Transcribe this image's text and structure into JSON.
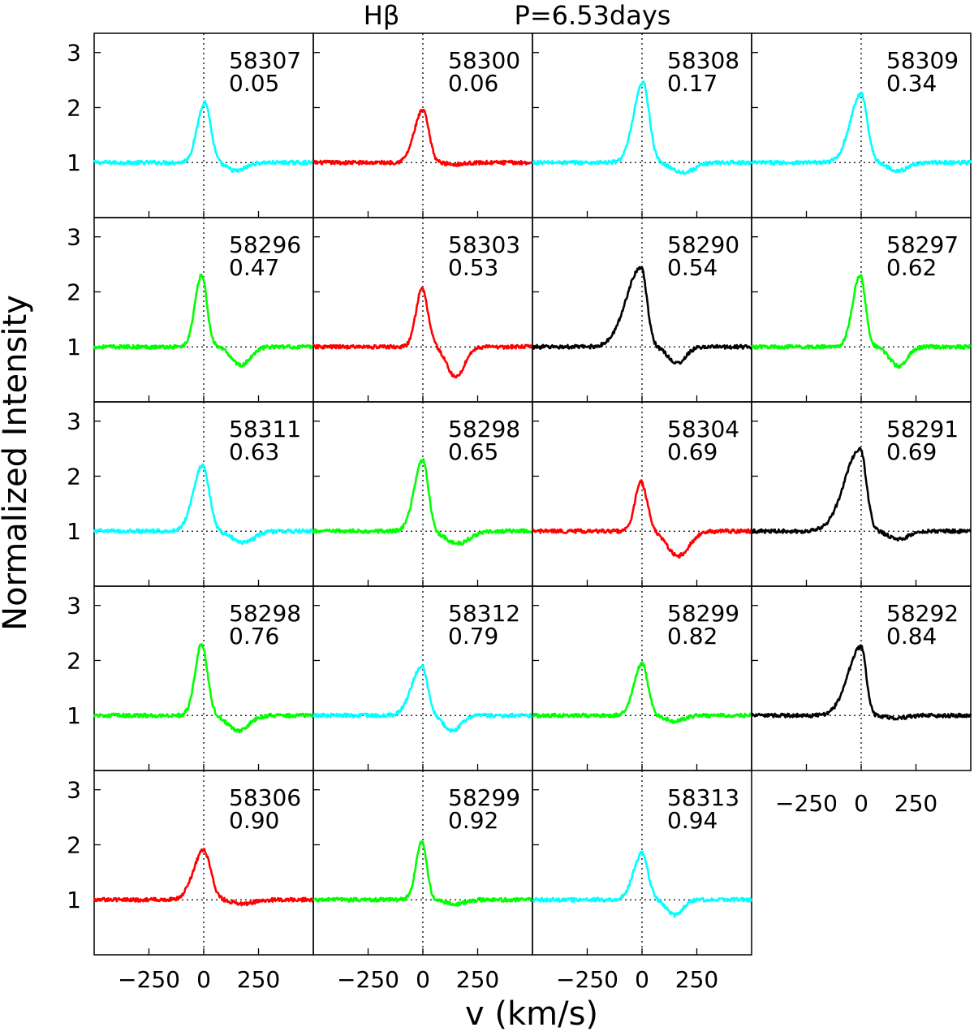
{
  "chart_data": {
    "type": "line",
    "title": "Hβ      P=6.53days",
    "title_line": "Hβ",
    "title_period": "P=6.53days",
    "xlabel": "v (km/s)",
    "ylabel": "Normalized Intensity",
    "xlim": [
      -500,
      500
    ],
    "ylim": [
      0,
      3.35
    ],
    "x_ticks": [
      -250,
      0,
      250
    ],
    "x_tick_labels": [
      "−250",
      "0",
      "250"
    ],
    "y_ticks": [
      1,
      2,
      3
    ],
    "y_tick_labels": [
      "1",
      "2",
      "3"
    ],
    "reference_lines": {
      "x": 0,
      "y": 1
    },
    "color_legend": {
      "cyan": "#00ffff",
      "red": "#ff0000",
      "green": "#00ff00",
      "black": "#000000"
    },
    "panels": [
      {
        "mjd": "58307",
        "phase": "0.05",
        "color": "cyan",
        "peak": 2.1,
        "peak_v": 5,
        "blue_width": 48,
        "red_width": 38,
        "abs_depth": 0.15,
        "abs_v": 150,
        "abs_width": 60
      },
      {
        "mjd": "58300",
        "phase": "0.06",
        "color": "red",
        "peak": 1.95,
        "peak_v": 0,
        "blue_width": 55,
        "red_width": 38,
        "abs_depth": 0.03,
        "abs_v": 150,
        "abs_width": 60
      },
      {
        "mjd": "58308",
        "phase": "0.17",
        "color": "cyan",
        "peak": 2.45,
        "peak_v": 5,
        "blue_width": 60,
        "red_width": 40,
        "abs_depth": 0.18,
        "abs_v": 190,
        "abs_width": 70
      },
      {
        "mjd": "58309",
        "phase": "0.34",
        "color": "cyan",
        "peak": 2.25,
        "peak_v": 0,
        "blue_width": 70,
        "red_width": 40,
        "abs_depth": 0.15,
        "abs_v": 170,
        "abs_width": 60
      },
      {
        "mjd": "58296",
        "phase": "0.47",
        "color": "green",
        "peak": 2.3,
        "peak_v": -10,
        "blue_width": 42,
        "red_width": 35,
        "abs_depth": 0.33,
        "abs_v": 170,
        "abs_width": 60
      },
      {
        "mjd": "58303",
        "phase": "0.53",
        "color": "red",
        "peak": 2.05,
        "peak_v": -5,
        "blue_width": 38,
        "red_width": 40,
        "abs_depth": 0.55,
        "abs_v": 150,
        "abs_width": 55
      },
      {
        "mjd": "58290",
        "phase": "0.54",
        "color": "black",
        "peak": 2.45,
        "peak_v": -5,
        "blue_width": 95,
        "red_width": 38,
        "abs_depth": 0.3,
        "abs_v": 160,
        "abs_width": 55
      },
      {
        "mjd": "58297",
        "phase": "0.62",
        "color": "green",
        "peak": 2.3,
        "peak_v": -5,
        "blue_width": 48,
        "red_width": 35,
        "abs_depth": 0.35,
        "abs_v": 170,
        "abs_width": 55
      },
      {
        "mjd": "58311",
        "phase": "0.63",
        "color": "cyan",
        "peak": 2.2,
        "peak_v": -5,
        "blue_width": 60,
        "red_width": 42,
        "abs_depth": 0.2,
        "abs_v": 180,
        "abs_width": 70
      },
      {
        "mjd": "58298",
        "phase": "0.65",
        "color": "green",
        "peak": 2.3,
        "peak_v": 0,
        "blue_width": 55,
        "red_width": 35,
        "abs_depth": 0.22,
        "abs_v": 160,
        "abs_width": 75
      },
      {
        "mjd": "58304",
        "phase": "0.69",
        "color": "red",
        "peak": 1.9,
        "peak_v": -5,
        "blue_width": 38,
        "red_width": 40,
        "abs_depth": 0.45,
        "abs_v": 165,
        "abs_width": 70
      },
      {
        "mjd": "58291",
        "phase": "0.69",
        "color": "black",
        "peak": 2.5,
        "peak_v": -5,
        "blue_width": 100,
        "red_width": 40,
        "abs_depth": 0.15,
        "abs_v": 170,
        "abs_width": 60
      },
      {
        "mjd": "58298",
        "phase": "0.76",
        "color": "green",
        "peak": 2.3,
        "peak_v": -10,
        "blue_width": 42,
        "red_width": 38,
        "abs_depth": 0.28,
        "abs_v": 160,
        "abs_width": 65
      },
      {
        "mjd": "58312",
        "phase": "0.79",
        "color": "cyan",
        "peak": 1.9,
        "peak_v": -5,
        "blue_width": 65,
        "red_width": 38,
        "abs_depth": 0.28,
        "abs_v": 135,
        "abs_width": 55
      },
      {
        "mjd": "58299",
        "phase": "0.82",
        "color": "green",
        "peak": 1.95,
        "peak_v": 0,
        "blue_width": 52,
        "red_width": 38,
        "abs_depth": 0.1,
        "abs_v": 150,
        "abs_width": 60
      },
      {
        "mjd": "58292",
        "phase": "0.84",
        "color": "black",
        "peak": 2.25,
        "peak_v": 0,
        "blue_width": 85,
        "red_width": 32,
        "abs_depth": 0.05,
        "abs_v": 160,
        "abs_width": 60
      },
      {
        "mjd": "58306",
        "phase": "0.90",
        "color": "red",
        "peak": 1.9,
        "peak_v": 0,
        "blue_width": 65,
        "red_width": 45,
        "abs_depth": 0.08,
        "abs_v": 180,
        "abs_width": 60
      },
      {
        "mjd": "58299",
        "phase": "0.92",
        "color": "green",
        "peak": 2.05,
        "peak_v": -5,
        "blue_width": 38,
        "red_width": 32,
        "abs_depth": 0.08,
        "abs_v": 150,
        "abs_width": 60
      },
      {
        "mjd": "58313",
        "phase": "0.94",
        "color": "cyan",
        "peak": 1.85,
        "peak_v": 0,
        "blue_width": 55,
        "red_width": 38,
        "abs_depth": 0.28,
        "abs_v": 150,
        "abs_width": 50
      }
    ]
  }
}
